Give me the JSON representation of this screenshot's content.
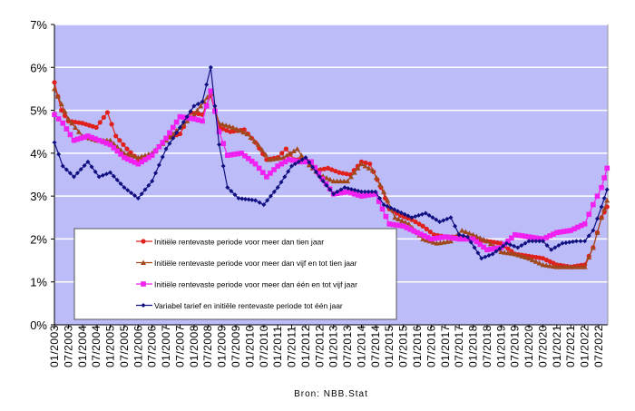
{
  "chart_data": {
    "type": "line",
    "title": "",
    "xlabel": "",
    "ylabel": "",
    "source": "Bron: NBB.Stat",
    "ylim": [
      0,
      7
    ],
    "xlim": [
      2003.0,
      2022.83
    ],
    "grid": true,
    "legend_position": "bottom-left inside",
    "yticks": [
      "0%",
      "1%",
      "2%",
      "3%",
      "4%",
      "5%",
      "6%",
      "7%"
    ],
    "xticks": [
      "01/2003",
      "07/2003",
      "01/2004",
      "07/2004",
      "01/2005",
      "07/2005",
      "01/2006",
      "07/2006",
      "01/2007",
      "07/2007",
      "01/2008",
      "07/2008",
      "01/2009",
      "07/2009",
      "01/2010",
      "07/2010",
      "01/2011",
      "07/2011",
      "01/2012",
      "07/2012",
      "01/2013",
      "07/2013",
      "01/2014",
      "07/2014",
      "01/2015",
      "07/2015",
      "01/2016",
      "07/2016",
      "01/2017",
      "07/2017",
      "01/2018",
      "07/2018",
      "01/2019",
      "07/2019",
      "01/2020",
      "07/2020",
      "01/2021",
      "07/2021",
      "01/2022",
      "07/2022"
    ],
    "series": [
      {
        "name": "Initiële rentevaste periode voor meer dan tien jaar",
        "color": "#e0201c",
        "marker": "circle",
        "x": [
          2003.0,
          2003.25,
          2003.5,
          2004.0,
          2004.5,
          2004.9,
          2005.2,
          2005.6,
          2006.0,
          2006.5,
          2007.0,
          2007.5,
          2007.9,
          2008.3,
          2008.6,
          2008.9,
          2009.3,
          2009.8,
          2010.2,
          2010.6,
          2011.0,
          2011.3,
          2011.6,
          2012.0,
          2012.4,
          2012.8,
          2013.2,
          2013.6,
          2014.0,
          2014.3,
          2014.7,
          2015.0,
          2015.4,
          2015.8,
          2016.2,
          2016.6,
          2017.0,
          2017.5,
          2018.0,
          2018.5,
          2019.0,
          2019.5,
          2020.0,
          2020.5,
          2021.0,
          2021.5,
          2022.0,
          2022.3,
          2022.6,
          2022.8
        ],
        "y": [
          5.65,
          5.0,
          4.75,
          4.7,
          4.6,
          4.95,
          4.4,
          4.1,
          3.85,
          3.95,
          4.35,
          4.45,
          4.95,
          4.9,
          5.35,
          4.6,
          4.5,
          4.55,
          4.25,
          3.85,
          3.9,
          4.1,
          3.85,
          3.85,
          3.6,
          3.65,
          3.55,
          3.5,
          3.8,
          3.75,
          3.2,
          2.7,
          2.55,
          2.45,
          2.3,
          2.1,
          2.05,
          2.05,
          2.0,
          1.95,
          1.9,
          1.65,
          1.6,
          1.55,
          1.4,
          1.35,
          1.4,
          1.8,
          2.5,
          2.75
        ]
      },
      {
        "name": "Initiële rentevaste periode voor meer dan vijf en tot tien jaar",
        "color": "#a0481c",
        "marker": "triangle",
        "x": [
          2003.0,
          2003.5,
          2004.0,
          2004.5,
          2005.0,
          2005.5,
          2006.0,
          2006.5,
          2007.0,
          2007.5,
          2008.0,
          2008.6,
          2008.9,
          2009.4,
          2009.9,
          2010.3,
          2010.7,
          2011.2,
          2011.7,
          2012.0,
          2012.5,
          2013.0,
          2013.5,
          2014.0,
          2014.4,
          2014.8,
          2015.2,
          2015.7,
          2016.2,
          2016.7,
          2017.2,
          2017.6,
          2018.0,
          2018.5,
          2019.0,
          2019.5,
          2020.0,
          2020.5,
          2021.0,
          2021.5,
          2022.0,
          2022.3,
          2022.6,
          2022.8
        ],
        "y": [
          5.5,
          4.8,
          4.4,
          4.3,
          4.3,
          4.0,
          3.9,
          4.0,
          4.3,
          4.6,
          4.9,
          5.4,
          4.7,
          4.6,
          4.45,
          4.2,
          3.85,
          3.9,
          4.1,
          3.8,
          3.5,
          3.35,
          3.35,
          3.75,
          3.6,
          3.1,
          2.5,
          2.35,
          2.0,
          1.9,
          1.95,
          2.2,
          2.1,
          1.95,
          1.7,
          1.65,
          1.55,
          1.4,
          1.35,
          1.35,
          1.35,
          1.8,
          2.5,
          2.9
        ]
      },
      {
        "name": "Initiële rentevaste periode voor meer dan één en tot vijf jaar",
        "color": "#f020f0",
        "marker": "square",
        "x": [
          2003.0,
          2003.3,
          2003.7,
          2004.2,
          2004.6,
          2005.0,
          2005.5,
          2006.0,
          2006.5,
          2007.0,
          2007.5,
          2008.0,
          2008.3,
          2008.6,
          2008.9,
          2009.2,
          2009.7,
          2010.2,
          2010.6,
          2011.0,
          2011.4,
          2011.8,
          2012.2,
          2012.6,
          2013.0,
          2013.5,
          2014.0,
          2014.5,
          2015.0,
          2015.5,
          2016.0,
          2016.5,
          2017.0,
          2017.5,
          2018.0,
          2018.5,
          2019.0,
          2019.5,
          2020.0,
          2020.5,
          2021.0,
          2021.5,
          2022.0,
          2022.3,
          2022.6,
          2022.8
        ],
        "y": [
          4.9,
          4.7,
          4.3,
          4.4,
          4.3,
          4.2,
          3.9,
          3.75,
          3.95,
          4.35,
          4.85,
          4.8,
          4.75,
          5.45,
          4.5,
          3.95,
          4.0,
          3.75,
          3.45,
          3.7,
          3.85,
          3.8,
          3.8,
          3.4,
          3.05,
          3.1,
          3.0,
          3.05,
          2.35,
          2.3,
          2.15,
          2.0,
          2.05,
          2.0,
          2.0,
          1.75,
          1.8,
          2.1,
          2.05,
          2.0,
          2.15,
          2.2,
          2.35,
          2.8,
          3.2,
          3.65
        ]
      },
      {
        "name": "Variabel tarief en initiële rentevaste periode tot één jaar",
        "color": "#101080",
        "marker": "diamond",
        "x": [
          2003.0,
          2003.3,
          2003.7,
          2004.2,
          2004.6,
          2005.0,
          2005.5,
          2006.0,
          2006.5,
          2007.0,
          2007.5,
          2008.0,
          2008.3,
          2008.6,
          2008.9,
          2009.2,
          2009.6,
          2010.2,
          2010.5,
          2011.0,
          2011.5,
          2012.0,
          2012.5,
          2013.0,
          2013.4,
          2014.0,
          2014.5,
          2014.8,
          2015.3,
          2015.8,
          2016.3,
          2016.8,
          2017.2,
          2017.5,
          2017.8,
          2018.3,
          2018.7,
          2019.2,
          2019.6,
          2020.0,
          2020.5,
          2020.8,
          2021.2,
          2021.7,
          2022.0,
          2022.3,
          2022.6,
          2022.8
        ],
        "y": [
          4.25,
          3.7,
          3.45,
          3.8,
          3.45,
          3.55,
          3.2,
          2.95,
          3.35,
          4.1,
          4.6,
          5.1,
          5.2,
          6.0,
          4.2,
          3.2,
          2.95,
          2.9,
          2.8,
          3.2,
          3.7,
          3.9,
          3.45,
          3.05,
          3.2,
          3.1,
          3.1,
          2.8,
          2.65,
          2.5,
          2.6,
          2.4,
          2.5,
          2.1,
          2.05,
          1.55,
          1.65,
          1.9,
          1.8,
          1.95,
          1.95,
          1.75,
          1.9,
          1.95,
          1.95,
          2.2,
          2.75,
          3.15
        ]
      }
    ]
  }
}
